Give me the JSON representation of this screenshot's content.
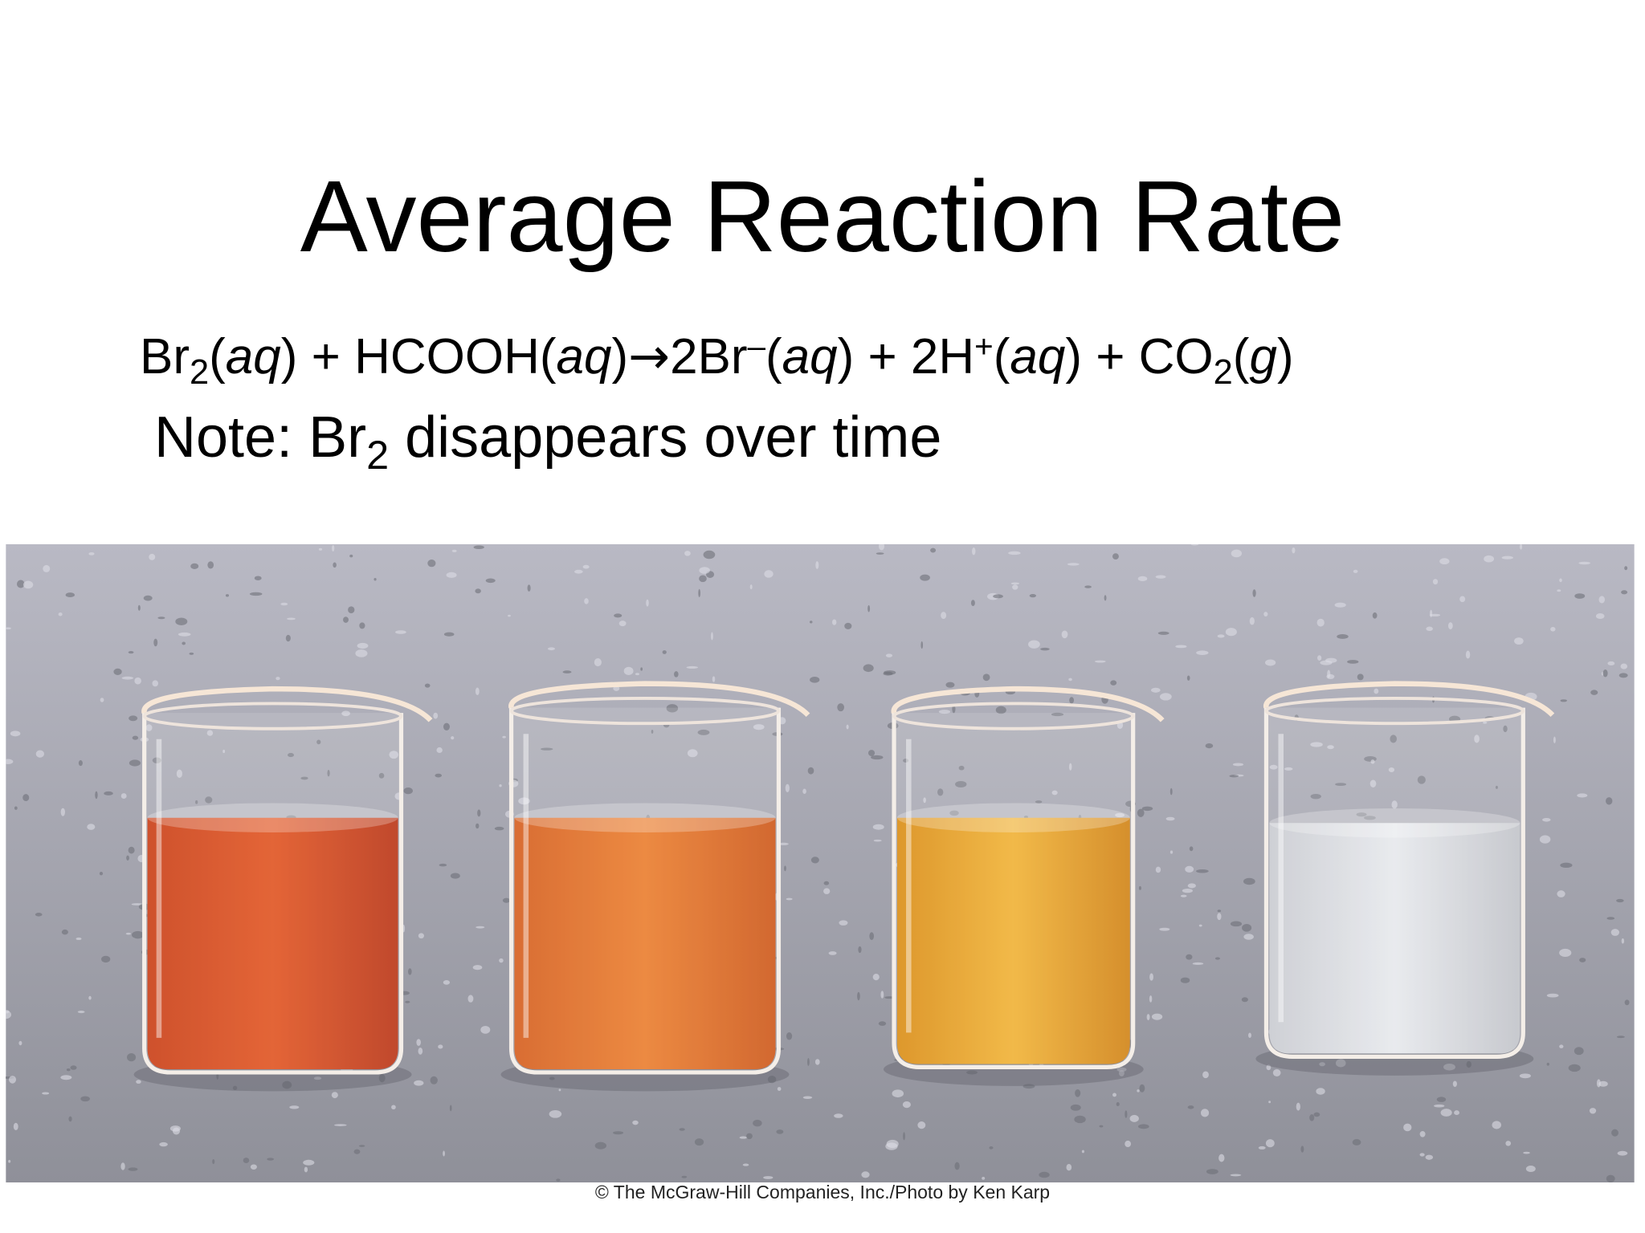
{
  "title": "Average Reaction Rate",
  "equation": [
    "Br",
    "2",
    "(",
    "aq",
    ") + HCOOH(",
    "aq",
    ")",
    "→",
    "2Br",
    "–",
    "(",
    "aq",
    ") + 2H",
    "+",
    "(",
    "aq",
    ") + CO",
    "2",
    "(",
    "g",
    ")"
  ],
  "note": [
    "Note: Br",
    "2",
    " disappears over time"
  ],
  "credit": "© The McGraw-Hill Companies, Inc./Photo by Ken Karp"
}
